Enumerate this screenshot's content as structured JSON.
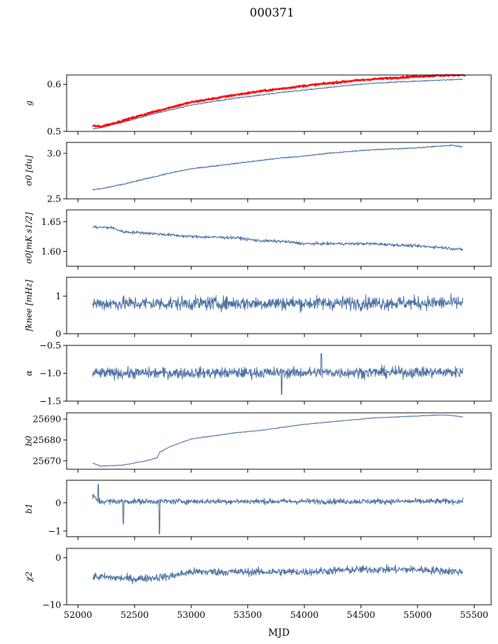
{
  "figure": {
    "title": "000371",
    "xlabel": "MJD"
  },
  "chart_data": [
    {
      "type": "line",
      "ylabel": "g",
      "ylim": [
        0.5,
        0.62
      ],
      "yticks": [
        0.5,
        0.6
      ],
      "ytick_labels": [
        "0.5",
        "0.6"
      ],
      "series": [
        {
          "color": "#4c72a4",
          "points": [
            [
              52130,
              0.505
            ],
            [
              52200,
              0.508
            ],
            [
              52400,
              0.52
            ],
            [
              52600,
              0.533
            ],
            [
              52800,
              0.545
            ],
            [
              53000,
              0.556
            ],
            [
              53200,
              0.564
            ],
            [
              53400,
              0.571
            ],
            [
              53600,
              0.577
            ],
            [
              53800,
              0.583
            ],
            [
              54000,
              0.588
            ],
            [
              54200,
              0.593
            ],
            [
              54400,
              0.598
            ],
            [
              54600,
              0.602
            ],
            [
              54800,
              0.605
            ],
            [
              55000,
              0.607
            ],
            [
              55200,
              0.609
            ],
            [
              55400,
              0.611
            ]
          ],
          "noise": 0.0008
        },
        {
          "color": "#ff0000",
          "points": [
            [
              52130,
              0.512
            ],
            [
              52200,
              0.51
            ],
            [
              52400,
              0.523
            ],
            [
              52600,
              0.537
            ],
            [
              52800,
              0.55
            ],
            [
              53000,
              0.562
            ],
            [
              53200,
              0.57
            ],
            [
              53400,
              0.578
            ],
            [
              53600,
              0.585
            ],
            [
              53800,
              0.591
            ],
            [
              54000,
              0.597
            ],
            [
              54200,
              0.602
            ],
            [
              54400,
              0.607
            ],
            [
              54600,
              0.611
            ],
            [
              54800,
              0.614
            ],
            [
              55000,
              0.617
            ],
            [
              55200,
              0.619
            ],
            [
              55420,
              0.621
            ]
          ],
          "noise": 0.0015
        }
      ]
    },
    {
      "type": "line",
      "ylabel": "σ0 [du]",
      "ylim": [
        2.5,
        3.12
      ],
      "yticks": [
        2.5,
        3.0
      ],
      "ytick_labels": [
        "2.5",
        "3.0"
      ],
      "series": [
        {
          "color": "#4c72a4",
          "points": [
            [
              52130,
              2.6
            ],
            [
              52200,
              2.61
            ],
            [
              52400,
              2.66
            ],
            [
              52600,
              2.72
            ],
            [
              52800,
              2.78
            ],
            [
              53000,
              2.83
            ],
            [
              53200,
              2.86
            ],
            [
              53400,
              2.89
            ],
            [
              53600,
              2.92
            ],
            [
              53800,
              2.95
            ],
            [
              54000,
              2.97
            ],
            [
              54200,
              3.0
            ],
            [
              54400,
              3.02
            ],
            [
              54600,
              3.04
            ],
            [
              54800,
              3.05
            ],
            [
              55000,
              3.06
            ],
            [
              55200,
              3.08
            ],
            [
              55300,
              3.09
            ],
            [
              55400,
              3.07
            ]
          ],
          "noise": 0.005
        }
      ]
    },
    {
      "type": "line",
      "ylabel": "σ0[mK s1/2]",
      "ylim": [
        1.575,
        1.67
      ],
      "yticks": [
        1.6,
        1.65
      ],
      "ytick_labels": [
        "1.60",
        "1.65"
      ],
      "series": [
        {
          "color": "#4c72a4",
          "points": [
            [
              52130,
              1.641
            ],
            [
              52300,
              1.64
            ],
            [
              52400,
              1.633
            ],
            [
              52600,
              1.631
            ],
            [
              52800,
              1.628
            ],
            [
              53000,
              1.625
            ],
            [
              53200,
              1.624
            ],
            [
              53400,
              1.623
            ],
            [
              53600,
              1.618
            ],
            [
              53800,
              1.617
            ],
            [
              54000,
              1.613
            ],
            [
              54200,
              1.613
            ],
            [
              54400,
              1.613
            ],
            [
              54600,
              1.613
            ],
            [
              54800,
              1.611
            ],
            [
              55000,
              1.609
            ],
            [
              55200,
              1.607
            ],
            [
              55400,
              1.603
            ]
          ],
          "noise": 0.0018
        }
      ]
    },
    {
      "type": "line",
      "ylabel": "fknee [mHz]",
      "ylim": [
        0,
        1.5
      ],
      "yticks": [
        0,
        1
      ],
      "ytick_labels": [
        "0",
        "1"
      ],
      "series": [
        {
          "color": "#4c72a4",
          "points": [
            [
              52130,
              0.8
            ],
            [
              55400,
              0.82
            ]
          ],
          "noise": 0.13
        }
      ]
    },
    {
      "type": "line",
      "ylabel": "α",
      "ylim": [
        -1.5,
        -0.5
      ],
      "yticks": [
        -1.5,
        -1.0,
        -0.5
      ],
      "ytick_labels": [
        "−1.5",
        "−1.0",
        "−0.5"
      ],
      "series": [
        {
          "color": "#4c72a4",
          "points": [
            [
              52130,
              -1.0
            ],
            [
              55400,
              -0.98
            ]
          ],
          "noise": 0.07
        }
      ]
    },
    {
      "type": "line",
      "ylabel": "b0",
      "ylim": [
        25666,
        25693
      ],
      "yticks": [
        25670,
        25680,
        25690
      ],
      "ytick_labels": [
        "25670",
        "25680",
        "25690"
      ],
      "series": [
        {
          "color": "#4c72a4",
          "points": [
            [
              52130,
              25669
            ],
            [
              52200,
              25667.5
            ],
            [
              52400,
              25668
            ],
            [
              52600,
              25670
            ],
            [
              52700,
              25671.5
            ],
            [
              52720,
              25674
            ],
            [
              52800,
              25676.5
            ],
            [
              53000,
              25680.5
            ],
            [
              53200,
              25682
            ],
            [
              53400,
              25683.5
            ],
            [
              53600,
              25684.5
            ],
            [
              53800,
              25686
            ],
            [
              54000,
              25687.5
            ],
            [
              54200,
              25688.5
            ],
            [
              54400,
              25689.5
            ],
            [
              54600,
              25690.5
            ],
            [
              54800,
              25691
            ],
            [
              55000,
              25691.5
            ],
            [
              55200,
              25692
            ],
            [
              55300,
              25691.8
            ],
            [
              55400,
              25691
            ]
          ],
          "noise": 0.12
        }
      ]
    },
    {
      "type": "line",
      "ylabel": "b1",
      "ylim": [
        -1.2,
        0.8
      ],
      "yticks": [
        -1,
        0
      ],
      "ytick_labels": [
        "−1",
        "0"
      ],
      "series": [
        {
          "color": "#4c72a4",
          "points": [
            [
              52130,
              0.25
            ],
            [
              52180,
              0.05
            ],
            [
              55400,
              0.05
            ]
          ],
          "noise": 0.07
        }
      ]
    },
    {
      "type": "line",
      "ylabel": "χ2",
      "ylim": [
        -10,
        2
      ],
      "yticks": [
        -10,
        0
      ],
      "ytick_labels": [
        "−10",
        "0"
      ],
      "series": [
        {
          "color": "#4c72a4",
          "points": [
            [
              52130,
              -4
            ],
            [
              52500,
              -4.5
            ],
            [
              52800,
              -4
            ],
            [
              53000,
              -3
            ],
            [
              53500,
              -3
            ],
            [
              54000,
              -3
            ],
            [
              54500,
              -2.5
            ],
            [
              55000,
              -2.5
            ],
            [
              55400,
              -3
            ]
          ],
          "noise": 0.6
        }
      ]
    }
  ],
  "x_axis": {
    "xlim": [
      51900,
      55650
    ],
    "xticks": [
      52000,
      52500,
      53000,
      53500,
      54000,
      54500,
      55000,
      55500
    ],
    "xtick_labels": [
      "52000",
      "52500",
      "53000",
      "53500",
      "54000",
      "54500",
      "55000",
      "55500"
    ]
  }
}
